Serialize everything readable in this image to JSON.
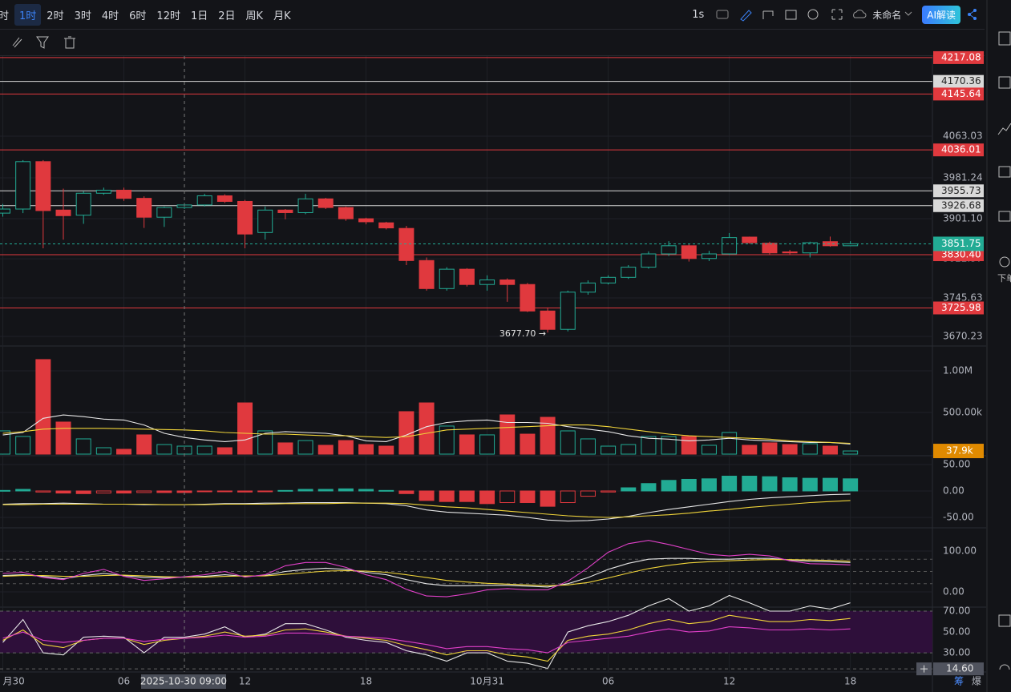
{
  "toolbar": {
    "intervals": [
      {
        "label": "时",
        "active": false
      },
      {
        "label": "1时",
        "active": true
      },
      {
        "label": "2时",
        "active": false
      },
      {
        "label": "3时",
        "active": false
      },
      {
        "label": "4时",
        "active": false
      },
      {
        "label": "6时",
        "active": false
      },
      {
        "label": "12时",
        "active": false
      },
      {
        "label": "1日",
        "active": false
      },
      {
        "label": "2日",
        "active": false
      },
      {
        "label": "周K",
        "active": false
      },
      {
        "label": "月K",
        "active": false
      }
    ],
    "speed": "1s",
    "layout_name": "未命名",
    "ai_button": "AI解读"
  },
  "sidebar": {
    "order": "下单"
  },
  "bottom_right": [
    "筹",
    "爆"
  ],
  "chart_data": [
    {
      "type": "candlestick",
      "categories": [
        "月30",
        null,
        null,
        null,
        null,
        null,
        "06",
        null,
        null,
        null,
        null,
        null,
        "12",
        null,
        null,
        null,
        null,
        null,
        "18",
        null,
        null,
        null,
        null,
        null,
        "10月31",
        null,
        null,
        null,
        null,
        null,
        "06",
        null,
        null,
        null,
        null,
        null,
        "12",
        null,
        null,
        null,
        null,
        null,
        "18"
      ],
      "open": [
        3912,
        3920,
        4013,
        3918,
        3908,
        3951,
        3957,
        3941,
        3904,
        3923,
        3928,
        3946,
        3935,
        3874,
        3918,
        3913,
        3940,
        3923,
        3901,
        3893,
        3882,
        3819,
        3764,
        3802,
        3772,
        3781,
        3772,
        3720,
        3684,
        3757,
        3775,
        3786,
        3806,
        3832,
        3848,
        3823,
        3832,
        3865,
        3853,
        3836,
        3834,
        3856,
        3848
      ],
      "high": [
        3930,
        4016,
        4016,
        3960,
        3955,
        3962,
        3962,
        3945,
        3925,
        3932,
        3950,
        3949,
        3938,
        3925,
        3920,
        3950,
        3942,
        3925,
        3903,
        3895,
        3887,
        3825,
        3806,
        3804,
        3790,
        3784,
        3775,
        3727,
        3760,
        3780,
        3790,
        3810,
        3837,
        3857,
        3852,
        3838,
        3873,
        3866,
        3856,
        3840,
        3856,
        3866,
        3857
      ],
      "low": [
        3905,
        3912,
        3843,
        3860,
        3891,
        3948,
        3936,
        3883,
        3885,
        3920,
        3925,
        3932,
        3843,
        3860,
        3900,
        3910,
        3920,
        3897,
        3890,
        3880,
        3810,
        3760,
        3760,
        3768,
        3760,
        3738,
        3718,
        3677.7,
        3680,
        3752,
        3772,
        3783,
        3803,
        3828,
        3817,
        3818,
        3830,
        3852,
        3830,
        3830,
        3825,
        3846,
        3847
      ],
      "close": [
        3920,
        4013,
        3917,
        3907,
        3951,
        3957,
        3941,
        3904,
        3923,
        3928,
        3946,
        3935,
        3871,
        3918,
        3913,
        3940,
        3923,
        3901,
        3895,
        3883,
        3819,
        3764,
        3802,
        3772,
        3781,
        3772,
        3720,
        3684,
        3757,
        3775,
        3786,
        3806,
        3832,
        3848,
        3823,
        3832,
        3864,
        3854,
        3834,
        3834,
        3854,
        3848,
        3851.75
      ],
      "up_color": "#22ab94",
      "down_color": "#e0393e",
      "ylim": [
        3654.5,
        4220.1
      ],
      "yticks": [
        4063.03,
        3981.24,
        {
          "value": 3901.1,
          "label": "3901.10"
        },
        3822.37,
        3745.63,
        3670.23
      ],
      "levels": [
        {
          "value": 4217.08,
          "color": "#e0393e"
        },
        {
          "value": 4170.36,
          "color": "#d9d9d9"
        },
        {
          "value": 4145.64,
          "color": "#e0393e"
        },
        {
          "value": 4036.01,
          "color": "#e0393e"
        },
        {
          "value": 3955.73,
          "color": "#d9d9d9"
        },
        {
          "value": 3926.68,
          "color": "#d9d9d9"
        },
        {
          "value": 3830.4,
          "label": "3830.40",
          "color": "#e0393e"
        },
        {
          "value": 3725.98,
          "color": "#e0393e"
        }
      ],
      "last_price": {
        "value": 3851.75,
        "color": "#22ab94"
      },
      "low_annotation": "3677.70 →",
      "crosshair": "2025-10-30 09:00"
    },
    {
      "type": "bar",
      "values": [
        279000,
        212000,
        1135000,
        385000,
        183000,
        77000,
        58000,
        231000,
        115000,
        96000,
        96000,
        77000,
        615000,
        279000,
        135000,
        163000,
        106000,
        163000,
        115000,
        96000,
        510000,
        615000,
        337000,
        231000,
        231000,
        471000,
        240000,
        442000,
        279000,
        183000,
        96000,
        115000,
        212000,
        212000,
        212000,
        106000,
        260000,
        106000,
        135000,
        115000,
        125000,
        96000,
        37900
      ],
      "series": [
        {
          "color": "#e6e6e6",
          "values": [
            230000,
            260000,
            430000,
            470000,
            450000,
            420000,
            410000,
            350000,
            250000,
            200000,
            170000,
            150000,
            170000,
            250000,
            270000,
            260000,
            250000,
            220000,
            160000,
            150000,
            230000,
            330000,
            380000,
            400000,
            410000,
            380000,
            380000,
            370000,
            330000,
            300000,
            270000,
            220000,
            190000,
            180000,
            160000,
            170000,
            190000,
            170000,
            160000,
            150000,
            140000,
            140000,
            120000
          ]
        },
        {
          "color": "#f0d43a",
          "values": [
            250000,
            270000,
            300000,
            310000,
            310000,
            310000,
            305000,
            300000,
            295000,
            290000,
            280000,
            260000,
            250000,
            240000,
            240000,
            230000,
            220000,
            220000,
            210000,
            200000,
            210000,
            250000,
            290000,
            300000,
            310000,
            320000,
            330000,
            340000,
            350000,
            350000,
            330000,
            300000,
            270000,
            240000,
            220000,
            210000,
            200000,
            190000,
            180000,
            160000,
            150000,
            140000,
            130000
          ]
        }
      ],
      "ylim": [
        0,
        1221000
      ],
      "yticks": [
        {
          "value": 1000000,
          "label": "1.00M"
        },
        {
          "value": 500000,
          "label": "500.00k"
        }
      ],
      "last_value": {
        "value": 37900,
        "label": "37.9k",
        "color": "#e08a00"
      }
    },
    {
      "type": "macd",
      "values": [
        1,
        3,
        -2,
        -4,
        -5,
        -4,
        -4,
        -3,
        -3,
        -3,
        -1,
        -1,
        -2,
        -1,
        1,
        3,
        3,
        4,
        3,
        1,
        -5,
        -18,
        -20,
        -20,
        -24,
        -22,
        -22,
        -29,
        -22,
        -10,
        -2,
        6,
        14,
        20,
        22,
        23,
        28,
        28,
        27,
        25,
        24,
        24,
        23
      ],
      "series": [
        {
          "color": "#e6e6e6",
          "values": [
            -25,
            -24,
            -24,
            -23,
            -24,
            -25,
            -25,
            -26,
            -26,
            -26,
            -25,
            -24,
            -24,
            -23,
            -23,
            -22,
            -22,
            -22,
            -23,
            -24,
            -28,
            -36,
            -40,
            -42,
            -44,
            -46,
            -50,
            -55,
            -57,
            -56,
            -53,
            -48,
            -41,
            -35,
            -30,
            -25,
            -20,
            -16,
            -13,
            -11,
            -9,
            -7,
            -6
          ]
        },
        {
          "color": "#f0d43a",
          "values": [
            -26,
            -26,
            -25,
            -25,
            -25,
            -25,
            -25,
            -25,
            -26,
            -26,
            -26,
            -25,
            -25,
            -25,
            -24,
            -24,
            -24,
            -23,
            -23,
            -23,
            -24,
            -27,
            -30,
            -32,
            -35,
            -38,
            -41,
            -44,
            -47,
            -49,
            -50,
            -49,
            -47,
            -45,
            -42,
            -38,
            -35,
            -31,
            -28,
            -25,
            -22,
            -20,
            -18
          ]
        }
      ],
      "up_color": "#22ab94",
      "down_color": "#e0393e",
      "ylim": [
        -68.2,
        62.1
      ],
      "yticks": [
        {
          "value": 50,
          "label": "50.00"
        },
        {
          "value": 0,
          "label": "0.00"
        },
        {
          "value": -50,
          "label": "-50.00"
        }
      ]
    },
    {
      "type": "line",
      "series": [
        {
          "color": "#e6e6e6",
          "values": [
            40,
            42,
            38,
            32,
            40,
            45,
            40,
            35,
            35,
            36,
            38,
            42,
            38,
            40,
            50,
            55,
            58,
            55,
            48,
            42,
            30,
            20,
            15,
            15,
            16,
            16,
            14,
            12,
            20,
            35,
            55,
            70,
            80,
            82,
            82,
            80,
            80,
            82,
            82,
            78,
            75,
            74,
            72
          ]
        },
        {
          "color": "#f0d43a",
          "values": [
            38,
            40,
            40,
            38,
            38,
            40,
            41,
            39,
            37,
            36,
            36,
            38,
            39,
            39,
            43,
            47,
            51,
            52,
            51,
            48,
            42,
            35,
            28,
            24,
            21,
            19,
            17,
            15,
            17,
            23,
            34,
            46,
            57,
            65,
            71,
            74,
            76,
            78,
            79,
            79,
            78,
            77,
            75
          ]
        },
        {
          "color": "#e040c8",
          "values": [
            45,
            48,
            35,
            30,
            45,
            55,
            38,
            28,
            32,
            37,
            42,
            50,
            36,
            42,
            64,
            72,
            72,
            60,
            42,
            30,
            6,
            -10,
            -12,
            -5,
            5,
            8,
            5,
            5,
            26,
            59,
            97,
            118,
            126,
            116,
            104,
            92,
            88,
            92,
            88,
            76,
            69,
            68,
            66
          ]
        }
      ],
      "ylim": [
        -11.8,
        151
      ],
      "yticks": [
        {
          "value": 100,
          "label": "100.00"
        },
        {
          "value": 0,
          "label": "0.00"
        }
      ],
      "ref_lines": [
        80,
        50,
        20
      ]
    },
    {
      "type": "line",
      "series": [
        {
          "color": "#e6e6e6",
          "values": [
            40,
            62,
            30,
            28,
            45,
            46,
            45,
            30,
            45,
            45,
            48,
            55,
            45,
            48,
            58,
            58,
            52,
            45,
            42,
            40,
            32,
            28,
            22,
            30,
            30,
            22,
            20,
            15,
            50,
            56,
            60,
            66,
            75,
            82,
            70,
            75,
            85,
            78,
            70,
            70,
            75,
            72,
            78
          ]
        },
        {
          "color": "#f0d43a",
          "values": [
            42,
            52,
            38,
            35,
            42,
            44,
            44,
            38,
            42,
            44,
            46,
            50,
            46,
            47,
            52,
            53,
            50,
            46,
            44,
            42,
            37,
            33,
            28,
            32,
            32,
            28,
            26,
            22,
            42,
            46,
            48,
            52,
            58,
            62,
            58,
            60,
            66,
            63,
            60,
            60,
            62,
            61,
            63
          ]
        },
        {
          "color": "#e040c8",
          "values": [
            44,
            50,
            42,
            40,
            42,
            44,
            44,
            41,
            43,
            44,
            45,
            47,
            45,
            46,
            49,
            49,
            48,
            46,
            45,
            44,
            41,
            38,
            34,
            36,
            36,
            34,
            33,
            30,
            40,
            42,
            44,
            46,
            50,
            53,
            50,
            51,
            55,
            54,
            52,
            52,
            53,
            52,
            53
          ]
        }
      ],
      "ylim": [
        12.4,
        70.8
      ],
      "yticks": [
        {
          "value": 70,
          "label": "70.00"
        },
        {
          "value": 50,
          "label": "50.00"
        },
        {
          "value": 30,
          "label": "30.00"
        }
      ],
      "band": [
        30,
        70
      ],
      "band_color": "#2e0f3a",
      "marker": {
        "value": 14.6,
        "label": "14.60"
      }
    }
  ]
}
